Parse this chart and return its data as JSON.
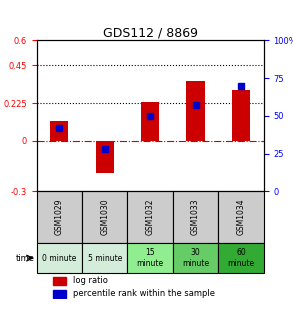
{
  "title": "GDS112 / 8869",
  "samples": [
    "GSM1029",
    "GSM1030",
    "GSM1032",
    "GSM1033",
    "GSM1034"
  ],
  "log_ratios": [
    0.12,
    -0.19,
    0.235,
    0.355,
    0.305
  ],
  "percentile_ranks": [
    42,
    28,
    50,
    57,
    70
  ],
  "ylim_left": [
    -0.3,
    0.6
  ],
  "ylim_right": [
    0,
    100
  ],
  "yticks_left": [
    -0.3,
    0,
    0.225,
    0.45,
    0.6
  ],
  "ytick_labels_left": [
    "-0.3",
    "0",
    "0.225",
    "0.45",
    "0.6"
  ],
  "yticks_right": [
    0,
    25,
    50,
    75,
    100
  ],
  "ytick_labels_right": [
    "0",
    "25",
    "50",
    "75",
    "100%"
  ],
  "hlines": [
    0.225,
    0.45
  ],
  "bar_color": "#cc0000",
  "dot_color": "#0000cc",
  "zero_line_color": "#cc0000",
  "time_labels": [
    "0 minute",
    "5 minute",
    "15\nminute",
    "30\nminute",
    "60\nminute"
  ],
  "time_colors": [
    "#d4edda",
    "#d4edda",
    "#90ee90",
    "#66cc66",
    "#33aa33"
  ],
  "sample_bg_color": "#cccccc",
  "legend_bar_label": "log ratio",
  "legend_dot_label": "percentile rank within the sample",
  "bar_width": 0.4
}
